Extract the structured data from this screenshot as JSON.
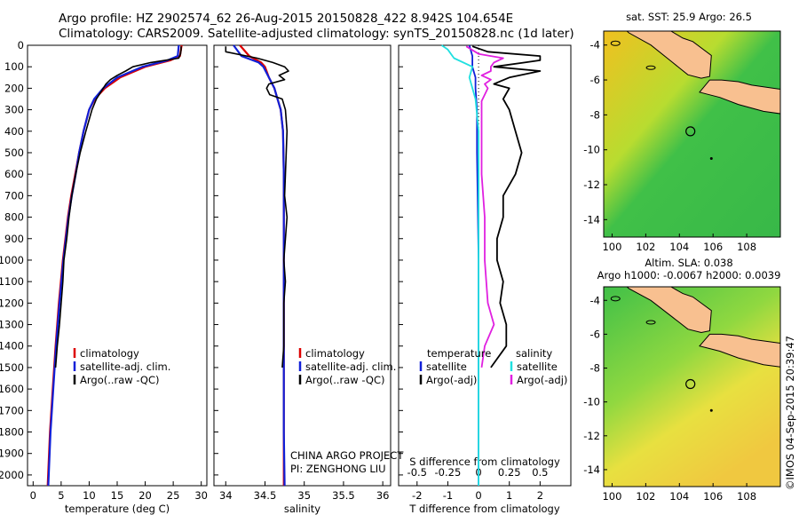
{
  "header": {
    "line1": "Argo profile: HZ 2902574_62 26-Aug-2015 20150828_422 8.942S 104.654E",
    "line2": "Climatology: CARS2009. Satellite-adjusted climatology: synTS_20150828.nc (1d later)"
  },
  "colors": {
    "climatology": "#dd0000",
    "satellite": "#1020d8",
    "argo": "#000000",
    "s_sat": "#20e0e0",
    "s_argo": "#e020e0",
    "land": "#f8c090"
  },
  "chart_data": [
    {
      "type": "line",
      "id": "temperature",
      "xlabel": "temperature (deg C)",
      "ylim": [
        2050,
        0
      ],
      "xlim": [
        -1,
        31
      ],
      "xticks": [
        0,
        5,
        10,
        15,
        20,
        25,
        30
      ],
      "yticks": [
        0,
        100,
        200,
        300,
        400,
        500,
        600,
        700,
        800,
        900,
        1000,
        1100,
        1200,
        1300,
        1400,
        1500,
        1600,
        1700,
        1800,
        1900,
        2000
      ],
      "legend": [
        "climatology",
        "satellite-adj. clim.",
        "Argo(..raw -QC)"
      ],
      "series": [
        {
          "name": "climatology",
          "color": "#dd0000",
          "depth": [
            0,
            50,
            70,
            100,
            150,
            200,
            250,
            300,
            400,
            500,
            600,
            700,
            800,
            1000,
            1200,
            1400,
            1600,
            1800,
            2050
          ],
          "values": [
            26.5,
            26.2,
            24.5,
            20.0,
            15.5,
            12.8,
            11.0,
            10.0,
            9.0,
            8.2,
            7.5,
            6.8,
            6.2,
            5.3,
            4.6,
            4.0,
            3.5,
            3.0,
            2.6
          ]
        },
        {
          "name": "satellite-adj. clim.",
          "color": "#1020d8",
          "depth": [
            0,
            50,
            70,
            100,
            150,
            200,
            250,
            300,
            400,
            500,
            600,
            700,
            800,
            1000,
            1200,
            1400,
            1600,
            1800,
            2050
          ],
          "values": [
            26.0,
            25.8,
            24.0,
            19.5,
            15.0,
            12.5,
            10.9,
            10.0,
            9.0,
            8.2,
            7.6,
            6.9,
            6.3,
            5.4,
            4.7,
            4.1,
            3.6,
            3.1,
            2.7
          ]
        },
        {
          "name": "Argo(..raw -QC)",
          "color": "#000000",
          "depth": [
            5,
            20,
            40,
            60,
            80,
            100,
            120,
            140,
            160,
            180,
            200,
            250,
            300,
            400,
            500,
            600,
            700,
            800,
            900,
            1000,
            1100,
            1200,
            1300,
            1400,
            1500
          ],
          "values": [
            26.4,
            26.4,
            26.3,
            26.0,
            21.0,
            17.8,
            16.5,
            15.0,
            13.8,
            13.0,
            12.5,
            11.3,
            10.5,
            9.4,
            8.4,
            7.6,
            6.9,
            6.4,
            6.0,
            5.5,
            5.3,
            5.0,
            4.7,
            4.3,
            4.0
          ]
        }
      ]
    },
    {
      "type": "line",
      "id": "salinity",
      "xlabel": "salinity",
      "ylim": [
        2050,
        0
      ],
      "xlim": [
        33.85,
        36.1
      ],
      "xticks": [
        34,
        34.5,
        35,
        35.5,
        36
      ],
      "legend": [
        "climatology",
        "satellite-adj. clim.",
        "Argo(..raw -QC)"
      ],
      "annotation": [
        "CHINA ARGO PROJECT",
        "PI: ZENGHONG LIU"
      ],
      "series": [
        {
          "name": "climatology",
          "color": "#dd0000",
          "depth": [
            0,
            50,
            80,
            100,
            150,
            200,
            250,
            300,
            400,
            600,
            1000,
            1400,
            1800,
            2050
          ],
          "values": [
            34.18,
            34.3,
            34.45,
            34.5,
            34.55,
            34.62,
            34.66,
            34.7,
            34.73,
            34.74,
            34.74,
            34.74,
            34.74,
            34.74
          ]
        },
        {
          "name": "satellite-adj. clim.",
          "color": "#1020d8",
          "depth": [
            0,
            50,
            80,
            100,
            150,
            200,
            250,
            300,
            400,
            600,
            1000,
            1400,
            1800,
            2050
          ],
          "values": [
            34.1,
            34.2,
            34.42,
            34.48,
            34.55,
            34.62,
            34.66,
            34.7,
            34.73,
            34.74,
            34.74,
            34.74,
            34.74,
            34.75
          ]
        },
        {
          "name": "Argo(..raw -QC)",
          "color": "#000000",
          "depth": [
            5,
            30,
            60,
            80,
            100,
            120,
            140,
            160,
            180,
            200,
            230,
            250,
            300,
            400,
            500,
            600,
            700,
            800,
            900,
            1000,
            1100,
            1200,
            1300,
            1400,
            1500
          ],
          "values": [
            34.0,
            34.0,
            34.4,
            34.6,
            34.75,
            34.8,
            34.68,
            34.75,
            34.55,
            34.52,
            34.56,
            34.72,
            34.76,
            34.78,
            34.77,
            34.76,
            34.75,
            34.78,
            34.76,
            34.74,
            34.76,
            34.74,
            34.74,
            34.74,
            34.72
          ]
        }
      ]
    },
    {
      "type": "line",
      "id": "differences",
      "xlabel_top": "S difference from climatology",
      "xlabel": "T difference from climatology",
      "ylim": [
        2050,
        0
      ],
      "xlim": [
        -2.6,
        3.0
      ],
      "xticks": [
        -2,
        -1,
        0,
        1,
        2
      ],
      "sticks": [
        {
          "label": "-0.5",
          "t": -2.0
        },
        {
          "label": "-0.25",
          "t": -1.0
        },
        {
          "label": "0",
          "t": 0
        },
        {
          "label": "0.25",
          "t": 1.0
        },
        {
          "label": "0.5",
          "t": 2.0
        }
      ],
      "legend_left_title": "temperature",
      "legend_right_title": "salinity",
      "legend_labels": [
        "satellite",
        "Argo(-adj)"
      ],
      "series": [
        {
          "name": "satellite",
          "color": "#1020d8",
          "depth": [
            0,
            50,
            100,
            150,
            200,
            300,
            500,
            1000,
            2050
          ],
          "values": [
            -0.3,
            -0.2,
            -0.2,
            -0.1,
            -0.1,
            -0.05,
            -0.05,
            0,
            0
          ]
        },
        {
          "name": "Argo(-adj)",
          "color": "#000000",
          "depth": [
            5,
            30,
            50,
            70,
            80,
            100,
            120,
            150,
            180,
            200,
            250,
            300,
            400,
            500,
            600,
            700,
            800,
            900,
            1000,
            1100,
            1200,
            1300,
            1400,
            1500
          ],
          "values": [
            -0.2,
            0.3,
            2.0,
            2.0,
            1.5,
            0.5,
            2.0,
            1.0,
            0.5,
            1.0,
            0.8,
            1.0,
            1.2,
            1.4,
            1.2,
            0.8,
            0.8,
            0.6,
            0.6,
            0.8,
            0.7,
            0.9,
            0.9,
            0.4
          ]
        },
        {
          "name": "satellite",
          "color": "#20e0e0",
          "depth": [
            0,
            20,
            60,
            100,
            150,
            250,
            400,
            600,
            1000,
            2050
          ],
          "values": [
            -1.2,
            -1.0,
            -0.8,
            -0.2,
            -0.3,
            -0.1,
            0,
            0,
            0,
            0
          ]
        },
        {
          "name": "Argo(-adj)",
          "color": "#e020e0",
          "depth": [
            5,
            40,
            60,
            80,
            100,
            120,
            140,
            160,
            180,
            200,
            230,
            260,
            300,
            400,
            600,
            800,
            1000,
            1200,
            1300,
            1400,
            1500
          ],
          "values": [
            -0.4,
            0.0,
            0.8,
            0.5,
            0.4,
            0.4,
            0.1,
            0.4,
            0.2,
            0.3,
            0.2,
            0.1,
            0.1,
            0.1,
            0.1,
            0.2,
            0.2,
            0.3,
            0.5,
            0.2,
            0.1
          ]
        }
      ]
    },
    {
      "type": "heatmap",
      "id": "sst_map",
      "title": "sat. SST: 25.9  Argo: 26.5",
      "xlim": [
        99.5,
        110
      ],
      "ylim": [
        -15,
        -3.2
      ],
      "xticks": [
        100,
        102,
        104,
        106,
        108
      ],
      "yticks": [
        -4,
        -6,
        -8,
        -10,
        -12,
        -14
      ],
      "float_position": [
        104.654,
        -8.942
      ]
    },
    {
      "type": "heatmap",
      "id": "sla_map",
      "title": "Altim. SLA: 0.038",
      "subtitle": "Argo h1000: -0.0067 h2000: 0.0039",
      "xlim": [
        99.5,
        110
      ],
      "ylim": [
        -15,
        -3.2
      ],
      "xticks": [
        100,
        102,
        104,
        106,
        108
      ],
      "yticks": [
        -4,
        -6,
        -8,
        -10,
        -12,
        -14
      ],
      "float_position": [
        104.654,
        -8.942
      ]
    }
  ],
  "footer": {
    "stamp": "©IMOS 04-Sep-2015 20:39:47"
  }
}
